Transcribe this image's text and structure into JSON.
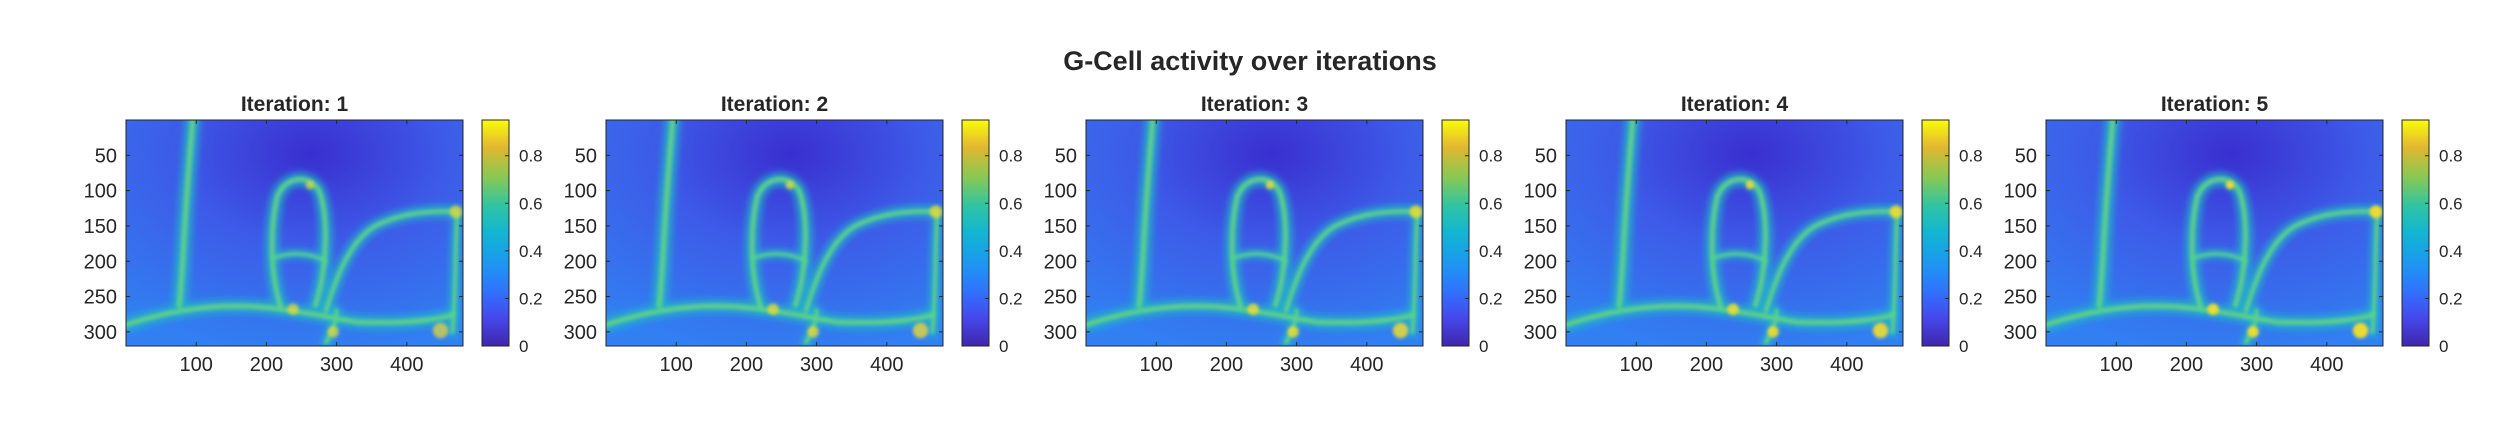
{
  "figure": {
    "title": "G-Cell activity over iterations"
  },
  "colors": {
    "parula_low": "#3e26a8",
    "parula_mid": "#1fbfb8",
    "parula_high": "#f9fb0e"
  },
  "chart_data": [
    {
      "type": "heatmap",
      "title": "Iteration: 1",
      "x_ticks": [
        100,
        200,
        300,
        400
      ],
      "y_ticks": [
        50,
        100,
        150,
        200,
        250,
        300
      ],
      "xlim": [
        0,
        480
      ],
      "ylim": [
        0,
        320
      ],
      "y_reversed": true,
      "colorbar": {
        "ticks": [
          0,
          0.2,
          0.4,
          0.6,
          0.8
        ],
        "range": [
          0,
          0.95
        ],
        "colormap": "parula"
      },
      "xlabel": "",
      "ylabel": ""
    },
    {
      "type": "heatmap",
      "title": "Iteration: 2",
      "x_ticks": [
        100,
        200,
        300,
        400
      ],
      "y_ticks": [
        50,
        100,
        150,
        200,
        250,
        300
      ],
      "xlim": [
        0,
        480
      ],
      "ylim": [
        0,
        320
      ],
      "y_reversed": true,
      "colorbar": {
        "ticks": [
          0,
          0.2,
          0.4,
          0.6,
          0.8
        ],
        "range": [
          0,
          0.95
        ],
        "colormap": "parula"
      },
      "xlabel": "",
      "ylabel": ""
    },
    {
      "type": "heatmap",
      "title": "Iteration: 3",
      "x_ticks": [
        100,
        200,
        300,
        400
      ],
      "y_ticks": [
        50,
        100,
        150,
        200,
        250,
        300
      ],
      "xlim": [
        0,
        480
      ],
      "ylim": [
        0,
        320
      ],
      "y_reversed": true,
      "colorbar": {
        "ticks": [
          0,
          0.2,
          0.4,
          0.6,
          0.8
        ],
        "range": [
          0,
          0.95
        ],
        "colormap": "parula"
      },
      "xlabel": "",
      "ylabel": ""
    },
    {
      "type": "heatmap",
      "title": "Iteration: 4",
      "x_ticks": [
        100,
        200,
        300,
        400
      ],
      "y_ticks": [
        50,
        100,
        150,
        200,
        250,
        300
      ],
      "xlim": [
        0,
        480
      ],
      "ylim": [
        0,
        320
      ],
      "y_reversed": true,
      "colorbar": {
        "ticks": [
          0,
          0.2,
          0.4,
          0.6,
          0.8
        ],
        "range": [
          0,
          0.95
        ],
        "colormap": "parula"
      },
      "xlabel": "",
      "ylabel": ""
    },
    {
      "type": "heatmap",
      "title": "Iteration: 5",
      "x_ticks": [
        100,
        200,
        300,
        400
      ],
      "y_ticks": [
        50,
        100,
        150,
        200,
        250,
        300
      ],
      "xlim": [
        0,
        480
      ],
      "ylim": [
        0,
        320
      ],
      "y_reversed": true,
      "colorbar": {
        "ticks": [
          0,
          0.2,
          0.4,
          0.6,
          0.8
        ],
        "range": [
          0,
          0.95
        ],
        "colormap": "parula"
      },
      "xlabel": "",
      "ylabel": ""
    }
  ]
}
